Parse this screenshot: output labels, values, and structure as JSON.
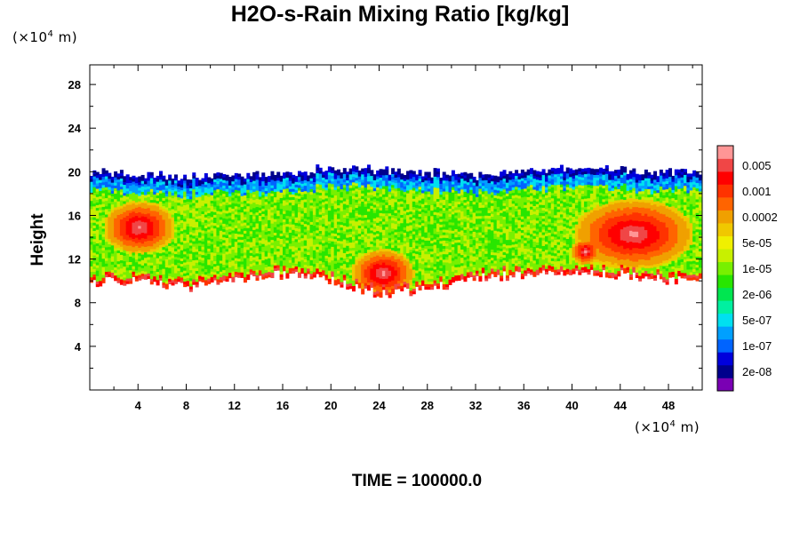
{
  "chart_data": {
    "type": "heatmap",
    "title": "H2O-s-Rain Mixing Ratio [kg/kg]",
    "ylabel": "Height",
    "x_unit": {
      "prefix": "(×10",
      "exp": "4",
      "suffix": " m)"
    },
    "y_unit": {
      "prefix": "(×10",
      "exp": "4",
      "suffix": " m)"
    },
    "xlim": [
      0,
      50.8
    ],
    "ylim": [
      0,
      29.8
    ],
    "x_ticks": [
      "4",
      "8",
      "12",
      "16",
      "20",
      "24",
      "28",
      "32",
      "36",
      "40",
      "44",
      "48"
    ],
    "y_ticks": [
      "4",
      "8",
      "12",
      "16",
      "20",
      "24",
      "28"
    ],
    "colorbar": {
      "colors": [
        "#7a00b4",
        "#00008c",
        "#0000dc",
        "#0064ff",
        "#00a0ff",
        "#00e0f0",
        "#00f0a0",
        "#00e650",
        "#28e600",
        "#78f000",
        "#c8f000",
        "#f0f000",
        "#f0c800",
        "#f0a000",
        "#ff6400",
        "#ff3200",
        "#ff0000",
        "#f04646",
        "#ff9696"
      ],
      "labels": [
        "2e-08",
        "1e-07",
        "5e-07",
        "2e-06",
        "1e-05",
        "5e-05",
        "0.0002",
        "0.001",
        "0.005"
      ]
    },
    "field_profile": {
      "x": [
        0,
        4,
        8,
        12,
        16,
        20,
        24,
        28,
        32,
        36,
        40,
        44,
        48,
        50.8
      ],
      "top_height": [
        19.8,
        19.6,
        19.4,
        19.6,
        19.6,
        20.2,
        20.0,
        19.8,
        19.6,
        19.9,
        20.2,
        20.0,
        19.8,
        19.8
      ],
      "base_height": [
        9.9,
        10.1,
        9.4,
        10.1,
        10.6,
        10.1,
        8.8,
        9.2,
        10.3,
        10.6,
        10.8,
        10.6,
        10.1,
        10.1
      ]
    }
  },
  "footer": {
    "time_label": "TIME = 100000.0"
  }
}
